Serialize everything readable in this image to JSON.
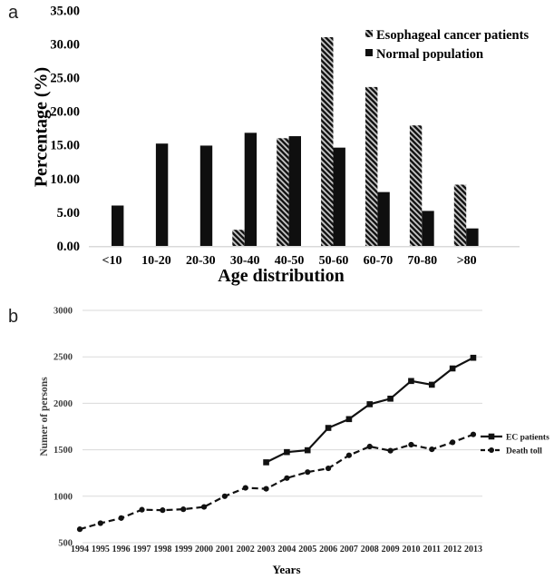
{
  "figure": {
    "background": "#ffffff"
  },
  "panel_a": {
    "label": "a",
    "chart_data": {
      "type": "bar",
      "title": "",
      "xlabel": "Age distribution",
      "ylabel": "Percentage (%)",
      "ylim": [
        0,
        35
      ],
      "yticks": [
        0,
        5,
        10,
        15,
        20,
        25,
        30,
        35
      ],
      "ytick_labels": [
        "0.00",
        "5.00",
        "10.00",
        "15.00",
        "20.00",
        "25.00",
        "30.00",
        "35.00"
      ],
      "categories": [
        "<10",
        "10-20",
        "20-30",
        "30-40",
        "40-50",
        "50-60",
        "60-70",
        "70-80",
        ">80"
      ],
      "series": [
        {
          "name": "Esophageal cancer patients",
          "fill": "hatched",
          "values": [
            0,
            0,
            0,
            2.4,
            16.0,
            31.0,
            23.6,
            17.9,
            9.1
          ]
        },
        {
          "name": "Normal population",
          "fill": "black",
          "values": [
            6.0,
            15.2,
            14.9,
            16.8,
            16.3,
            14.6,
            8.0,
            5.2,
            2.6
          ]
        }
      ],
      "legend_position": "top-right",
      "grid": false
    }
  },
  "panel_b": {
    "label": "b",
    "chart_data": {
      "type": "line",
      "title": "",
      "xlabel": "Years",
      "ylabel": "Numer of persons",
      "ylim": [
        500,
        3000
      ],
      "yticks": [
        500,
        1000,
        1500,
        2000,
        2500,
        3000
      ],
      "x": [
        1994,
        1995,
        1996,
        1997,
        1998,
        1999,
        2000,
        2001,
        2002,
        2003,
        2004,
        2005,
        2006,
        2007,
        2008,
        2009,
        2010,
        2011,
        2012,
        2013
      ],
      "series": [
        {
          "name": "EC patients",
          "line": "solid",
          "marker": "square",
          "values": [
            null,
            null,
            null,
            null,
            null,
            null,
            null,
            null,
            null,
            1365,
            1475,
            1495,
            1735,
            1830,
            1990,
            2050,
            2240,
            2200,
            2375,
            2490
          ]
        },
        {
          "name": "Death toll",
          "line": "dashed",
          "marker": "circle",
          "values": [
            645,
            710,
            765,
            855,
            850,
            860,
            885,
            1000,
            1090,
            1080,
            1195,
            1260,
            1300,
            1440,
            1535,
            1490,
            1555,
            1505,
            1580,
            1665
          ]
        }
      ],
      "legend_position": "right",
      "grid": true
    }
  },
  "colors": {
    "bar_black": "#0f0f0f",
    "hatch_bg": "#c6c6c6",
    "hatch_stripe": "#141414",
    "gridline": "#dadada",
    "axis_line": "#d9d9d9",
    "text_primary": "#000000",
    "text_secondary": "#3d3d3d",
    "text_xticks": "#262626",
    "line_series": "#111111"
  }
}
